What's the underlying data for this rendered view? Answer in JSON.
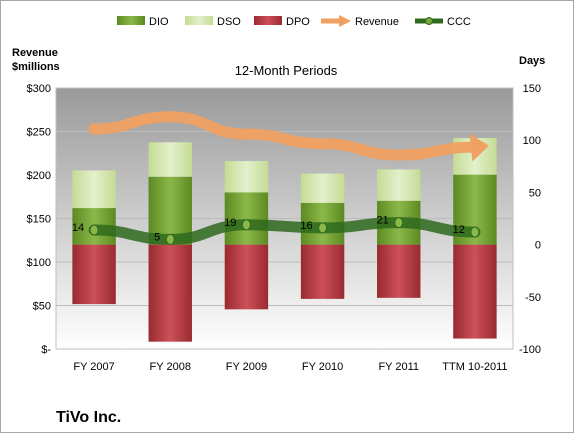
{
  "chart_data": {
    "type": "bar",
    "title": "12-Month Periods",
    "company": "TiVo Inc.",
    "left_axis_title": [
      "Revenue",
      "$millions"
    ],
    "right_axis_title": "Days",
    "left_ticks": [
      "$300",
      "$250",
      "$200",
      "$150",
      "$100",
      "$50",
      "$-"
    ],
    "right_ticks": [
      "150",
      "100",
      "50",
      "0",
      "-50",
      "-100"
    ],
    "left_range": [
      0,
      300
    ],
    "right_range": [
      -100,
      150
    ],
    "categories": [
      "FY 2007",
      "FY 2008",
      "FY 2009",
      "FY 2010",
      "FY 2011",
      "TTM 10-2011"
    ],
    "series": [
      {
        "name": "DIO",
        "color": "#6e9a2f",
        "values": [
          35,
          65,
          50,
          40,
          42,
          67
        ]
      },
      {
        "name": "DSO",
        "color": "#d6e8b0",
        "values": [
          36,
          33,
          30,
          28,
          30,
          35
        ]
      },
      {
        "name": "DPO",
        "color": "#b5333c",
        "values": [
          57,
          93,
          62,
          52,
          51,
          90
        ]
      },
      {
        "name": "Revenue",
        "color": "#f0a060",
        "values": [
          253,
          267,
          247,
          236,
          223,
          232
        ]
      },
      {
        "name": "CCC",
        "color": "#2e6a1c",
        "values": [
          14,
          5,
          19,
          16,
          21,
          12
        ]
      }
    ],
    "ccc_labels": [
      "14",
      "5",
      "19",
      "16",
      "21",
      "12"
    ],
    "grid": true,
    "legend_position": "top"
  }
}
